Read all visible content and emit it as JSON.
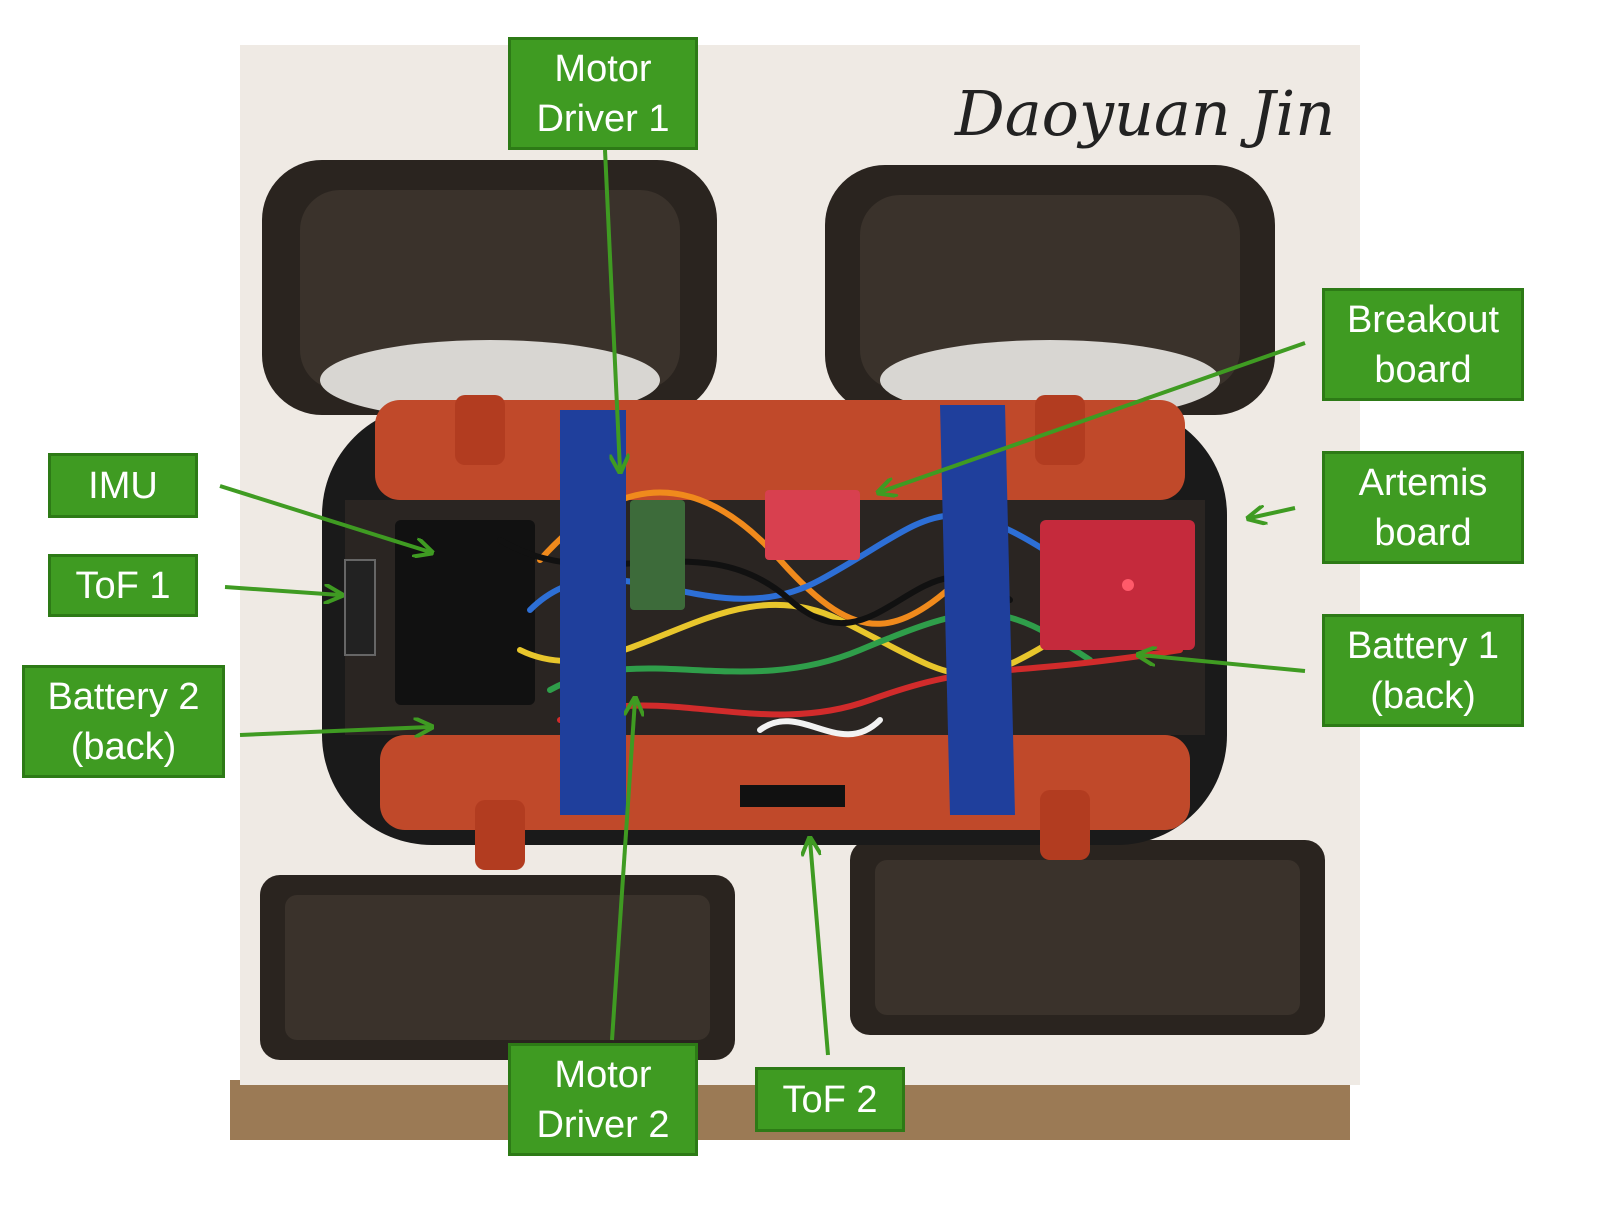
{
  "colors": {
    "label_fill": "#3f9b22",
    "label_border": "#2d7a16",
    "label_text": "#ffffff",
    "arrow": "#3f9b22",
    "chassis": "#c0492a",
    "tape": "#1f3f9c",
    "tire": "#2a241f",
    "card": "#efeae4"
  },
  "signature": "Daoyuan Jin",
  "labels": {
    "motor_driver_1": [
      "Motor",
      "Driver 1"
    ],
    "breakout_board": [
      "Breakout",
      "board"
    ],
    "imu": [
      "IMU"
    ],
    "artemis_board": [
      "Artemis",
      "board"
    ],
    "tof_1": [
      "ToF 1"
    ],
    "battery_1": [
      "Battery 1",
      "(back)"
    ],
    "battery_2": [
      "Battery 2",
      "(back)"
    ],
    "motor_driver_2": [
      "Motor",
      "Driver 2"
    ],
    "tof_2": [
      "ToF 2"
    ]
  }
}
